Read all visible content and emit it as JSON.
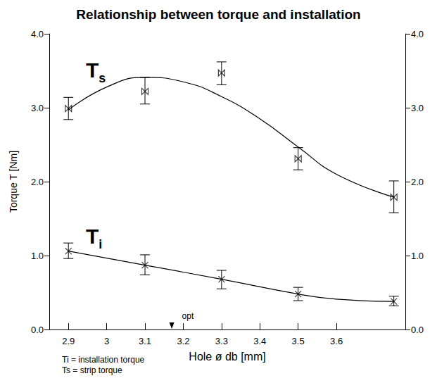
{
  "chart_data": {
    "type": "scatter",
    "title": "Relationship between torque and installation",
    "xlabel": "Hole ø db [mm]",
    "ylabel": "Torque T [Nm]",
    "x": [
      2.9,
      3.1,
      3.3,
      3.5,
      3.75
    ],
    "xlim": [
      2.85,
      3.78
    ],
    "xticks": [
      2.9,
      3.0,
      3.1,
      3.2,
      3.3,
      3.4,
      3.5,
      3.6
    ],
    "ylim": [
      0,
      4
    ],
    "yticks": [
      {
        "value": 0,
        "label": "0.0"
      },
      {
        "value": 1,
        "label": "1.0"
      },
      {
        "value": 2,
        "label": "2.0"
      },
      {
        "value": 3,
        "label": "3.0"
      },
      {
        "value": 4,
        "label": "4.0"
      }
    ],
    "y2lim": [
      0,
      4
    ],
    "y2ticks": [
      {
        "value": 0,
        "label": "0.0"
      },
      {
        "value": 1,
        "label": "1.0"
      },
      {
        "value": 2,
        "label": "2.0"
      },
      {
        "value": 3,
        "label": "3.0"
      },
      {
        "value": 4,
        "label": "4.0"
      }
    ],
    "grid": false,
    "legend": false,
    "series": [
      {
        "name": "Ts",
        "color": "#000000",
        "marker": "bowtie",
        "values": [
          2.99,
          3.22,
          3.47,
          2.31,
          1.79
        ],
        "lower": [
          2.84,
          3.05,
          3.31,
          2.16,
          1.58
        ],
        "upper": [
          3.14,
          3.41,
          3.62,
          2.46,
          2.01
        ],
        "fit": {
          "x": [
            2.9,
            3.0,
            3.1,
            3.2,
            3.3,
            3.4,
            3.5,
            3.6,
            3.75
          ],
          "values": [
            2.97,
            3.28,
            3.41,
            3.35,
            3.15,
            2.85,
            2.47,
            2.1,
            1.79
          ]
        }
      },
      {
        "name": "Ti",
        "color": "#000000",
        "marker": "x",
        "values": [
          1.06,
          0.87,
          0.68,
          0.48,
          0.38
        ],
        "lower": [
          0.96,
          0.74,
          0.55,
          0.39,
          0.32
        ],
        "upper": [
          1.17,
          1.01,
          0.8,
          0.57,
          0.45
        ],
        "fit": {
          "x": [
            2.9,
            3.1,
            3.3,
            3.5,
            3.6,
            3.75
          ],
          "values": [
            1.06,
            0.87,
            0.68,
            0.48,
            0.41,
            0.38
          ]
        }
      }
    ],
    "annotations": [
      {
        "text": "opt",
        "x": 3.17
      }
    ],
    "notes": [
      "Ti = installation torque",
      "Ts = strip torque"
    ]
  }
}
